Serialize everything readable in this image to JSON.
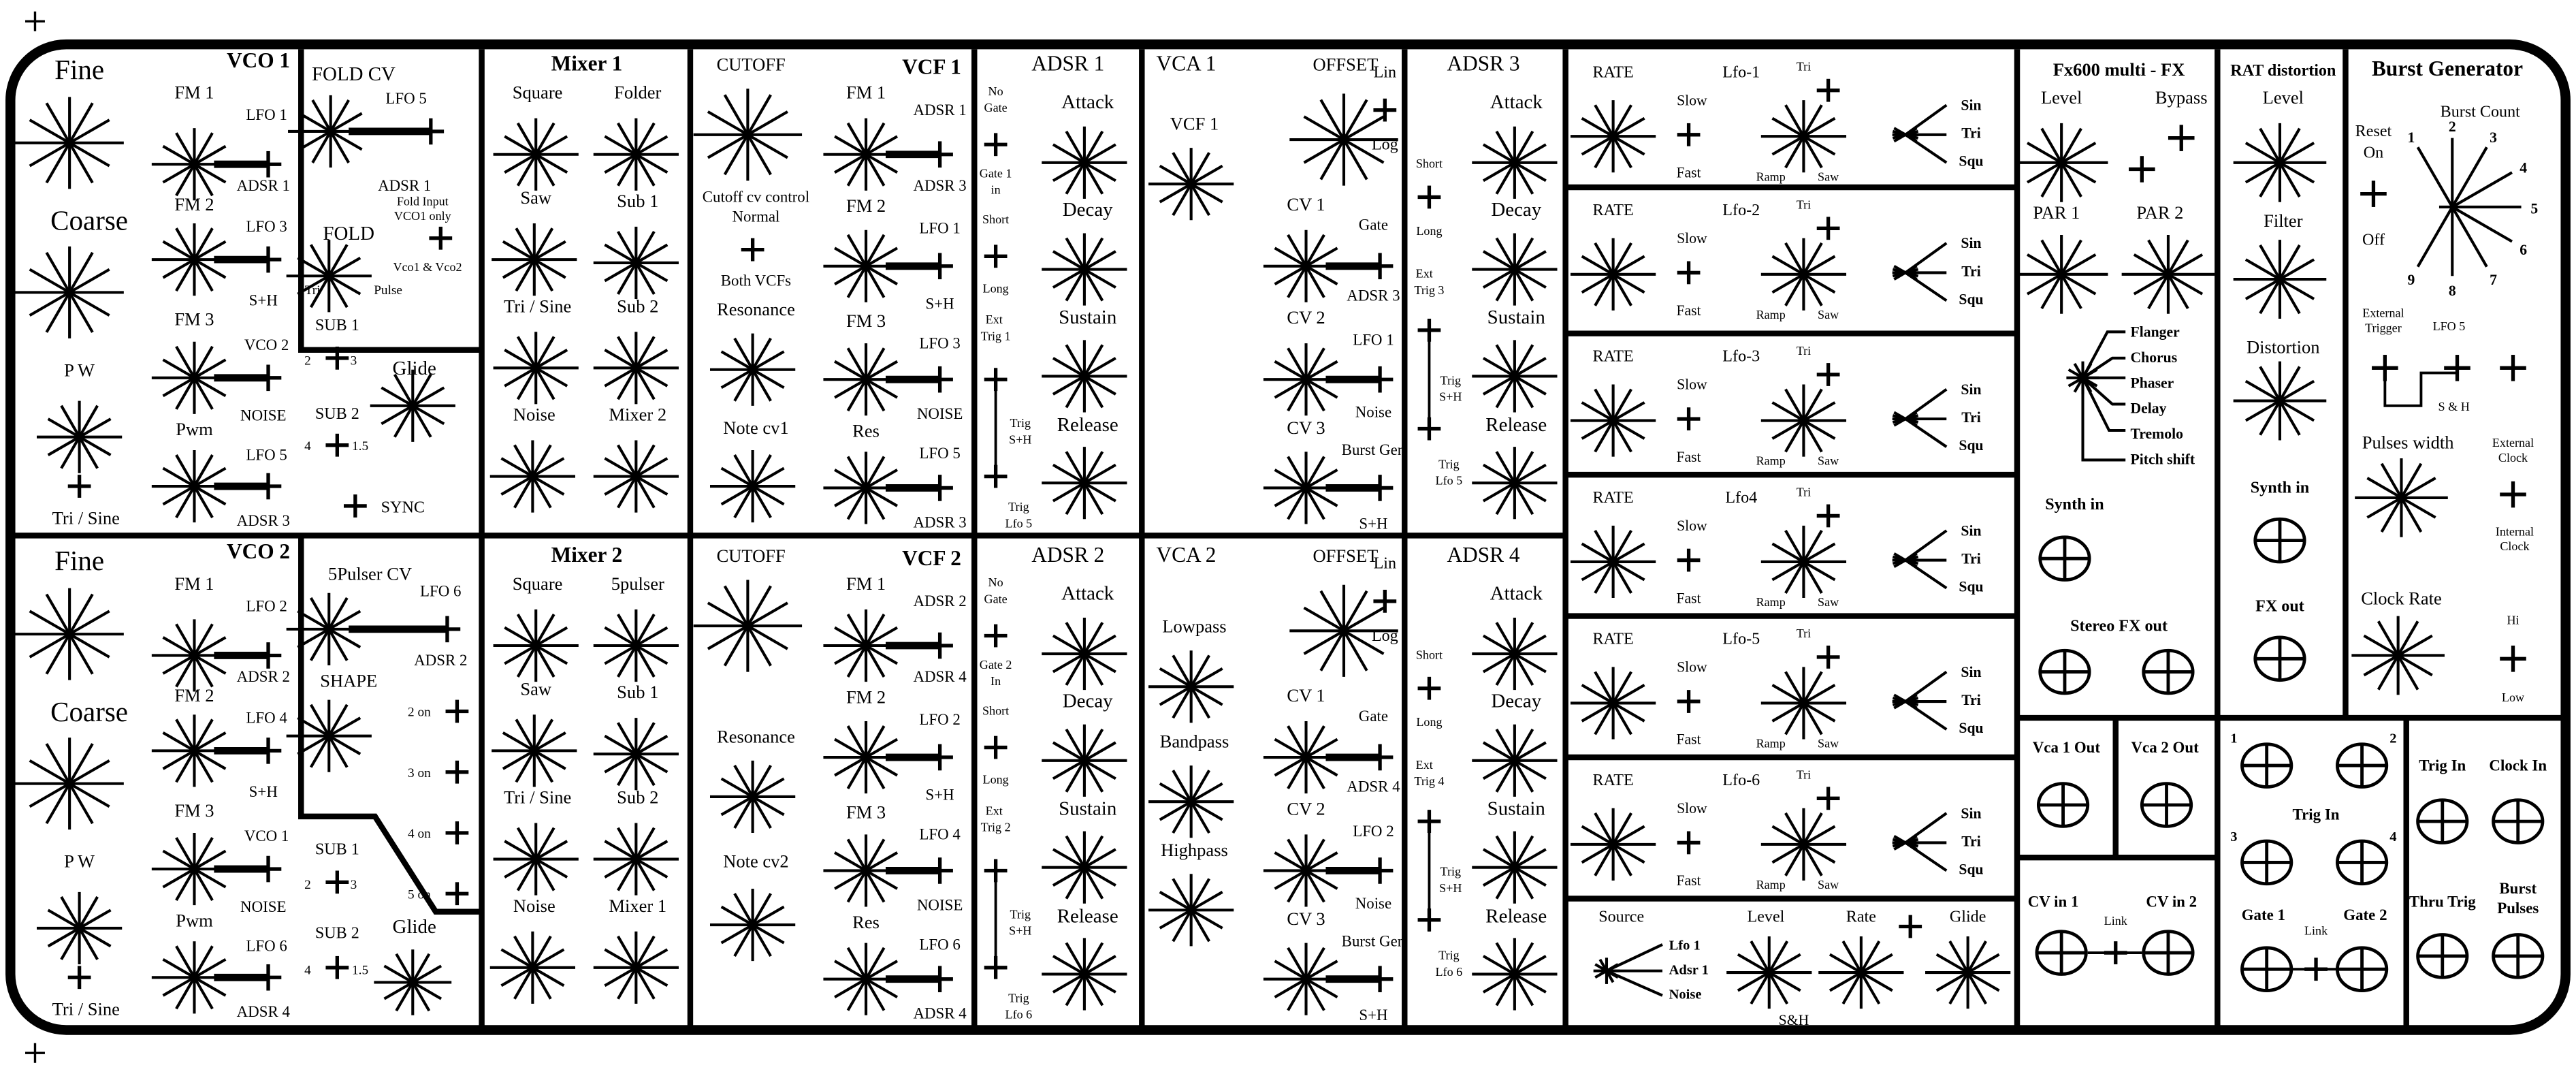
{
  "vco1": {
    "title": "VCO 1",
    "fine": "Fine",
    "coarse": "Coarse",
    "pw": "P W",
    "wave_switch": "Tri / Sine",
    "fm1": "FM 1",
    "fm1_a": "LFO 1",
    "fm1_b": "ADSR 1",
    "fm2": "FM 2",
    "fm2_a": "LFO 3",
    "fm2_b": "S+H",
    "fm3": "FM 3",
    "fm3_a": "VCO 2",
    "fm3_b": "NOISE",
    "pwm": "Pwm",
    "pwm_a": "LFO 5",
    "pwm_b": "ADSR 3",
    "sub1": "SUB 1",
    "sub1_a": "2",
    "sub1_b": "3",
    "sub2": "SUB 2",
    "sub2_a": "4",
    "sub2_b": "1.5",
    "glide": "Glide",
    "sync": "SYNC",
    "fold_cv": "FOLD CV",
    "fold_cv_a": "LFO 5",
    "fold_cv_b": "ADSR 1",
    "fold": "FOLD",
    "fold_tri": "Tri",
    "fold_pulse": "Pulse",
    "fold_input_1": "Fold Input",
    "fold_input_2": "VCO1 only",
    "fold_input_b": "Vco1 & Vco2"
  },
  "vco2": {
    "title": "VCO 2",
    "fine": "Fine",
    "coarse": "Coarse",
    "pw": "P W",
    "wave_switch": "Tri / Sine",
    "fm1": "FM 1",
    "fm1_a": "LFO 2",
    "fm1_b": "ADSR 2",
    "fm2": "FM 2",
    "fm2_a": "LFO 4",
    "fm2_b": "S+H",
    "fm3": "FM 3",
    "fm3_a": "VCO 1",
    "fm3_b": "NOISE",
    "pwm": "Pwm",
    "pwm_a": "LFO 6",
    "pwm_b": "ADSR 4",
    "sub1": "SUB 1",
    "sub1_a": "2",
    "sub1_b": "3",
    "sub2": "SUB 2",
    "sub2_a": "4",
    "sub2_b": "1.5",
    "glide": "Glide",
    "pulser_cv": "5Pulser CV",
    "pulser_cv_a": "LFO 6",
    "pulser_cv_b": "ADSR 2",
    "shape": "SHAPE",
    "shape_opts": [
      "2 on",
      "3 on",
      "4 on",
      "5 on"
    ]
  },
  "mixer1": {
    "title": "Mixer 1",
    "channels": [
      "Square",
      "Folder",
      "Saw",
      "Sub 1",
      "Tri / Sine",
      "Sub 2",
      "Noise",
      "Mixer 2"
    ]
  },
  "mixer2": {
    "title": "Mixer 2",
    "channels": [
      "Square",
      "5pulser",
      "Saw",
      "Sub 1",
      "Tri / Sine",
      "Sub 2",
      "Noise",
      "Mixer 1"
    ]
  },
  "vcf1": {
    "title": "VCF 1",
    "cutoff": "CUTOFF",
    "fm1": "FM 1",
    "fm1_a": "ADSR 1",
    "fm1_b": "ADSR 3",
    "fm2": "FM 2",
    "fm2_a": "LFO 1",
    "fm2_b": "S+H",
    "fm3": "FM 3",
    "fm3_a": "LFO 3",
    "fm3_b": "NOISE",
    "res": "Res",
    "res_a": "LFO 5",
    "res_b": "ADSR 3",
    "resonance": "Resonance",
    "note": "Note cv1",
    "cv_control_1": "Cutoff cv control",
    "cv_control_2": "Normal",
    "cv_control_b": "Both VCFs"
  },
  "vcf2": {
    "title": "VCF 2",
    "cutoff": "CUTOFF",
    "fm1": "FM 1",
    "fm1_a": "ADSR 2",
    "fm1_b": "ADSR 4",
    "fm2": "FM 2",
    "fm2_a": "LFO 2",
    "fm2_b": "S+H",
    "fm3": "FM 3",
    "fm3_a": "LFO 4",
    "fm3_b": "NOISE",
    "res": "Res",
    "res_a": "LFO 6",
    "res_b": "ADSR 4",
    "resonance": "Resonance",
    "note": "Note cv2"
  },
  "adsr1": {
    "title": "ADSR 1",
    "stages": [
      "Attack",
      "Decay",
      "Sustain",
      "Release"
    ],
    "no_gate": [
      "No",
      "Gate"
    ],
    "gate_in": [
      "Gate 1",
      "in"
    ],
    "short": "Short",
    "long": "Long",
    "ext": [
      "Ext",
      "Trig 1"
    ],
    "trig_sh": [
      "Trig",
      "S+H"
    ],
    "trig_lfo": [
      "Trig",
      "Lfo 5"
    ]
  },
  "adsr2": {
    "title": "ADSR 2",
    "stages": [
      "Attack",
      "Decay",
      "Sustain",
      "Release"
    ],
    "no_gate": [
      "No",
      "Gate"
    ],
    "gate_in": [
      "Gate 2",
      "In"
    ],
    "short": "Short",
    "long": "Long",
    "ext": [
      "Ext",
      "Trig 2"
    ],
    "trig_sh": [
      "Trig",
      "S+H"
    ],
    "trig_lfo": [
      "Trig",
      "Lfo 6"
    ]
  },
  "adsr3": {
    "title": "ADSR 3",
    "stages": [
      "Attack",
      "Decay",
      "Sustain",
      "Release"
    ],
    "short": "Short",
    "long": "Long",
    "ext": [
      "Ext",
      "Trig 3"
    ],
    "trig_sh": [
      "Trig",
      "S+H"
    ],
    "trig_lfo": [
      "Trig",
      "Lfo 5"
    ]
  },
  "adsr4": {
    "title": "ADSR 4",
    "stages": [
      "Attack",
      "Decay",
      "Sustain",
      "Release"
    ],
    "short": "Short",
    "long": "Long",
    "ext": [
      "Ext",
      "Trig 4"
    ],
    "trig_sh": [
      "Trig",
      "S+H"
    ],
    "trig_lfo": [
      "Trig",
      "Lfo 6"
    ]
  },
  "vca1": {
    "title": "VCA 1",
    "offset": "OFFSET",
    "lin": "Lin",
    "log": "Log",
    "input": "VCF 1",
    "cv1": "CV 1",
    "cv1_a": "Gate",
    "cv1_b": "ADSR 3",
    "cv2": "CV 2",
    "cv2_a": "LFO 1",
    "cv2_b": "Noise",
    "cv3": "CV 3",
    "cv3_a": "Burst Gen",
    "cv3_b": "S+H"
  },
  "vca2": {
    "title": "VCA 2",
    "offset": "OFFSET",
    "lin": "Lin",
    "log": "Log",
    "filters": [
      "Lowpass",
      "Bandpass",
      "Highpass"
    ],
    "cv1": "CV 1",
    "cv1_a": "Gate",
    "cv1_b": "ADSR 4",
    "cv2": "CV 2",
    "cv2_a": "LFO 2",
    "cv2_b": "Noise",
    "cv3": "CV 3",
    "cv3_a": "Burst Gen",
    "cv3_b": "S+H"
  },
  "lfos": [
    {
      "name": "Lfo-1",
      "rate": "RATE",
      "slow": "Slow",
      "fast": "Fast",
      "tri": "Tri",
      "ramp": "Ramp",
      "saw": "Saw",
      "waves": [
        "Sin",
        "Tri",
        "Squ"
      ]
    },
    {
      "name": "Lfo-2",
      "rate": "RATE",
      "slow": "Slow",
      "fast": "Fast",
      "tri": "Tri",
      "ramp": "Ramp",
      "saw": "Saw",
      "waves": [
        "Sin",
        "Tri",
        "Squ"
      ]
    },
    {
      "name": "Lfo-3",
      "rate": "RATE",
      "slow": "Slow",
      "fast": "Fast",
      "tri": "Tri",
      "ramp": "Ramp",
      "saw": "Saw",
      "waves": [
        "Sin",
        "Tri",
        "Squ"
      ]
    },
    {
      "name": "Lfo4",
      "rate": "RATE",
      "slow": "Slow",
      "fast": "Fast",
      "tri": "Tri",
      "ramp": "Ramp",
      "saw": "Saw",
      "waves": [
        "Sin",
        "Tri",
        "Squ"
      ]
    },
    {
      "name": "Lfo-5",
      "rate": "RATE",
      "slow": "Slow",
      "fast": "Fast",
      "tri": "Tri",
      "ramp": "Ramp",
      "saw": "Saw",
      "waves": [
        "Sin",
        "Tri",
        "Squ"
      ]
    },
    {
      "name": "Lfo-6",
      "rate": "RATE",
      "slow": "Slow",
      "fast": "Fast",
      "tri": "Tri",
      "ramp": "Ramp",
      "saw": "Saw",
      "waves": [
        "Sin",
        "Tri",
        "Squ"
      ]
    }
  ],
  "sh": {
    "title": "S&H",
    "source": "Source",
    "level": "Level",
    "rate": "Rate",
    "glide": "Glide",
    "sources": [
      "Lfo 1",
      "Adsr 1",
      "Noise"
    ]
  },
  "fx600": {
    "title": "Fx600 multi - FX",
    "level": "Level",
    "bypass": "Bypass",
    "par1": "PAR 1",
    "par2": "PAR 2",
    "effects": [
      "Flanger",
      "Chorus",
      "Phaser",
      "Delay",
      "Tremolo",
      "Pitch shift"
    ],
    "synth_in": "Synth in",
    "stereo_out": "Stereo FX out"
  },
  "rat": {
    "title": "RAT distortion",
    "level": "Level",
    "filter": "Filter",
    "distortion": "Distortion",
    "synth_in": "Synth in",
    "fx_out": "FX out"
  },
  "burst": {
    "title": "Burst Generator",
    "burst_count": "Burst Count",
    "counts": [
      "1",
      "2",
      "3",
      "4",
      "5",
      "6",
      "7",
      "8",
      "9"
    ],
    "reset": "Reset",
    "on": "On",
    "off": "Off",
    "ext_trigger": [
      "External",
      "Trigger"
    ],
    "lfo5": "LFO 5",
    "sh": "S & H",
    "pulses_width": "Pulses width",
    "ext_clock": [
      "External",
      "Clock"
    ],
    "int_clock": [
      "Internal",
      "Clock"
    ],
    "clock_rate": "Clock Rate",
    "hi": "Hi",
    "low": "Low",
    "trig_in": "Trig In",
    "clock_in": "Clock In",
    "thru_trig": "Thru Trig",
    "burst_pulses": [
      "Burst",
      "Pulses"
    ]
  },
  "outputs": {
    "vca1_out": "Vca 1 Out",
    "vca2_out": "Vca 2 Out",
    "cv_in1": "CV in 1",
    "cv_in2": "CV in 2",
    "link": "Link"
  },
  "trig_in": {
    "title": "Trig In",
    "nums": [
      "1",
      "2",
      "3",
      "4"
    ],
    "gate1": "Gate 1",
    "gate2": "Gate 2",
    "link": "Link"
  }
}
